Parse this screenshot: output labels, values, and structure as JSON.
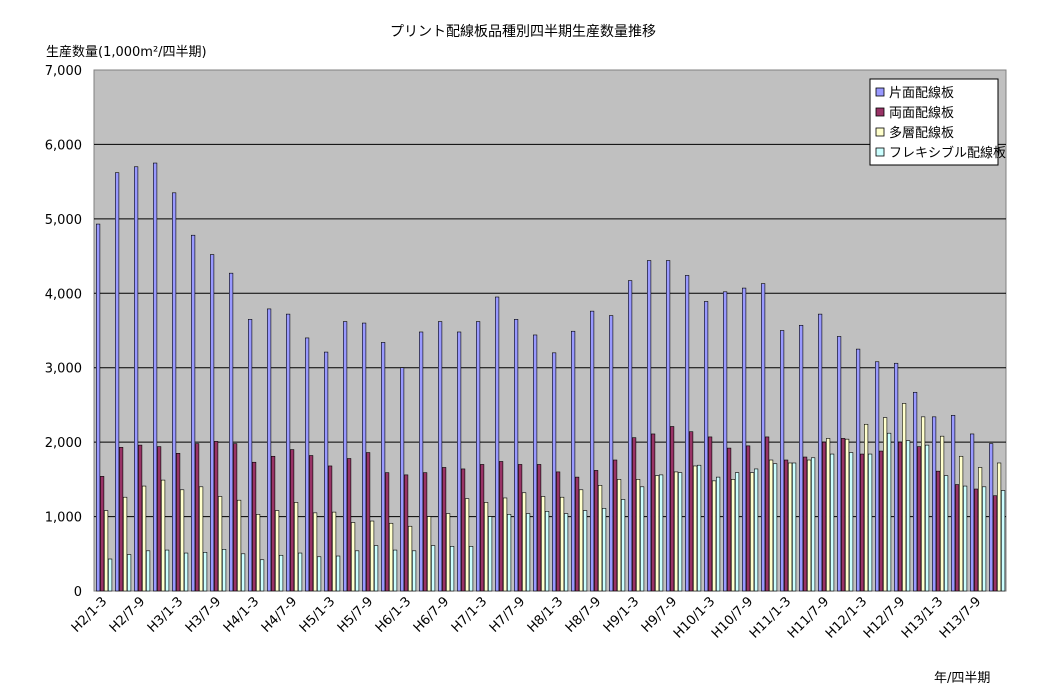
{
  "chart_data": {
    "type": "bar",
    "title": "プリント配線板品種別四半期生産数量推移",
    "ylabel": "生産数量(1,000m²/四半期)",
    "xlabel": "年/四半期",
    "ylim": [
      0,
      7000
    ],
    "yticks": [
      "0",
      "1,000",
      "2,000",
      "3,000",
      "4,000",
      "5,000",
      "6,000",
      "7,000"
    ],
    "ytick_values": [
      0,
      1000,
      2000,
      3000,
      4000,
      5000,
      6000,
      7000
    ],
    "grid": true,
    "legend_position": "top-right",
    "categories": [
      "H2/1-3",
      "H2/4-6",
      "H2/7-9",
      "H2/10-12",
      "H3/1-3",
      "H3/4-6",
      "H3/7-9",
      "H3/10-12",
      "H4/1-3",
      "H4/4-6",
      "H4/7-9",
      "H4/10-12",
      "H5/1-3",
      "H5/4-6",
      "H5/7-9",
      "H5/10-12",
      "H6/1-3",
      "H6/4-6",
      "H6/7-9",
      "H6/10-12",
      "H7/1-3",
      "H7/4-6",
      "H7/7-9",
      "H7/10-12",
      "H8/1-3",
      "H8/4-6",
      "H8/7-9",
      "H8/10-12",
      "H9/1-3",
      "H9/4-6",
      "H9/7-9",
      "H9/10-12",
      "H10/1-3",
      "H10/4-6",
      "H10/7-9",
      "H10/10-12",
      "H11/1-3",
      "H11/4-6",
      "H11/7-9",
      "H11/10-12",
      "H12/1-3",
      "H12/4-6",
      "H12/7-9",
      "H12/10-12",
      "H13/1-3",
      "H13/4-6",
      "H13/7-9",
      "H13/10-12"
    ],
    "shown_tick_labels": [
      "H2/1-3",
      "H2/7-9",
      "H3/1-3",
      "H3/7-9",
      "H4/1-3",
      "H4/7-9",
      "H5/1-3",
      "H5/7-9",
      "H6/1-3",
      "H6/7-9",
      "H7/1-3",
      "H7/7-9",
      "H8/1-3",
      "H8/7-9",
      "H9/1-3",
      "H9/7-9",
      "H10/1-3",
      "H10/7-9",
      "H11/1-3",
      "H11/7-9",
      "H12/1-3",
      "H12/7-9",
      "H13/1-3",
      "H13/7-9"
    ],
    "series": [
      {
        "name": "片面配線板",
        "color": "#9999ff",
        "values": [
          4930,
          5620,
          5700,
          5750,
          5350,
          4780,
          4520,
          4270,
          3650,
          3790,
          3720,
          3400,
          3210,
          3620,
          3600,
          3340,
          3000,
          3480,
          3620,
          3480,
          3620,
          3950,
          3650,
          3440,
          3200,
          3490,
          3760,
          3700,
          4170,
          4440,
          4440,
          4240,
          3890,
          4020,
          4070,
          4130,
          3500,
          3570,
          3720,
          3420,
          3250,
          3080,
          3060,
          2670,
          2340,
          2360,
          2110,
          1980
        ]
      },
      {
        "name": "両面配線板",
        "color": "#993366",
        "values": [
          1540,
          1930,
          1960,
          1940,
          1850,
          1980,
          2010,
          1980,
          1730,
          1810,
          1900,
          1820,
          1680,
          1780,
          1860,
          1590,
          1560,
          1590,
          1660,
          1640,
          1700,
          1740,
          1700,
          1700,
          1600,
          1530,
          1620,
          1760,
          2060,
          2110,
          2210,
          2140,
          2070,
          1920,
          1950,
          2070,
          1760,
          1800,
          2000,
          2050,
          1840,
          1880,
          2000,
          1940,
          1610,
          1430,
          1370,
          1280
        ]
      },
      {
        "name": "多層配線板",
        "color": "#ffffcc",
        "values": [
          1080,
          1260,
          1410,
          1490,
          1360,
          1400,
          1270,
          1220,
          1030,
          1080,
          1190,
          1050,
          1060,
          920,
          940,
          910,
          870,
          1000,
          1040,
          1240,
          1190,
          1250,
          1320,
          1270,
          1260,
          1360,
          1420,
          1500,
          1500,
          1550,
          1600,
          1680,
          1480,
          1500,
          1590,
          1760,
          1720,
          1760,
          2050,
          2040,
          2240,
          2330,
          2520,
          2340,
          2080,
          1810,
          1660,
          1720
        ]
      },
      {
        "name": "フレキシブル配線板",
        "color": "#ccffff",
        "values": [
          430,
          490,
          540,
          550,
          510,
          520,
          560,
          500,
          420,
          480,
          510,
          460,
          470,
          540,
          610,
          550,
          540,
          610,
          600,
          600,
          1000,
          1030,
          1040,
          1070,
          1040,
          1080,
          1110,
          1230,
          1400,
          1560,
          1590,
          1690,
          1530,
          1590,
          1640,
          1710,
          1720,
          1790,
          1840,
          1860,
          1840,
          2120,
          2020,
          1960,
          1550,
          1410,
          1400,
          1350
        ]
      }
    ]
  }
}
